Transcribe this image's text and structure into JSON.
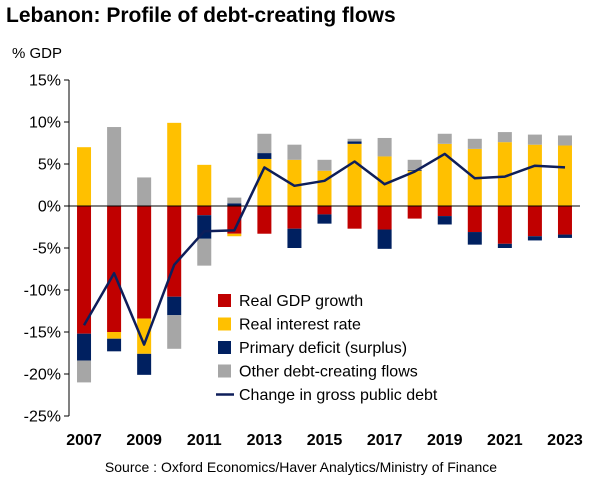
{
  "title": "Lebanon: Profile of debt-creating flows",
  "unit_label": "% GDP",
  "source": "Source : Oxford Economics/Haver Analytics/Ministry of Finance",
  "chart_data": {
    "type": "bar",
    "stacked": true,
    "ylim": [
      -25,
      15
    ],
    "yticks": [
      15,
      10,
      5,
      0,
      -5,
      -10,
      -15,
      -20,
      -25
    ],
    "ytick_labels": [
      "15%",
      "10%",
      "5%",
      "0%",
      "-5%",
      "-10%",
      "-15%",
      "-20%",
      "-25%"
    ],
    "categories": [
      "2007",
      "2008",
      "2009",
      "2010",
      "2011",
      "2012",
      "2013",
      "2014",
      "2015",
      "2016",
      "2017",
      "2018",
      "2019",
      "2020",
      "2021",
      "2022",
      "2023"
    ],
    "xtick_labels": [
      "2007",
      "",
      "2009",
      "",
      "2011",
      "",
      "2013",
      "",
      "2015",
      "",
      "2017",
      "",
      "2019",
      "",
      "2021",
      "",
      "2023"
    ],
    "grid": false,
    "legend_position": "bottom-center",
    "series": [
      {
        "name": "Real GDP growth",
        "kind": "bar",
        "color": "#C00000",
        "values": [
          -15.2,
          -15.0,
          -13.4,
          -10.8,
          -1.1,
          -3.3,
          -3.3,
          -2.7,
          -1.0,
          -2.7,
          -2.8,
          -1.5,
          -1.2,
          -3.1,
          -4.5,
          -3.6,
          -3.4
        ]
      },
      {
        "name": "Real interest rate",
        "kind": "bar",
        "color": "#FFC000",
        "values": [
          7.0,
          -0.8,
          -4.2,
          9.9,
          4.9,
          -0.3,
          5.6,
          5.5,
          4.2,
          7.4,
          5.9,
          4.2,
          7.4,
          6.8,
          7.6,
          7.3,
          7.2
        ]
      },
      {
        "name": "Primary deficit (surplus)",
        "kind": "bar",
        "color": "#002060",
        "values": [
          -3.2,
          -1.5,
          -2.5,
          -2.2,
          -2.8,
          0.3,
          0.7,
          -2.3,
          -1.1,
          0.3,
          -2.3,
          0.1,
          -1.0,
          -1.5,
          -0.5,
          -0.5,
          -0.4
        ]
      },
      {
        "name": "Other debt-creating flows",
        "kind": "bar",
        "color": "#A6A6A6",
        "values": [
          -2.6,
          9.4,
          3.4,
          -4.0,
          -3.2,
          0.7,
          2.3,
          1.8,
          1.3,
          0.3,
          2.2,
          1.2,
          1.2,
          1.2,
          1.2,
          1.2,
          1.2
        ]
      },
      {
        "name": "Change in gross public debt",
        "kind": "line",
        "color": "#0E1E5A",
        "values": [
          -14.2,
          -8.0,
          -16.5,
          -7.0,
          -3.0,
          -2.9,
          4.6,
          2.4,
          3.0,
          5.3,
          2.6,
          4.1,
          6.2,
          3.3,
          3.5,
          4.8,
          4.6
        ]
      }
    ]
  }
}
